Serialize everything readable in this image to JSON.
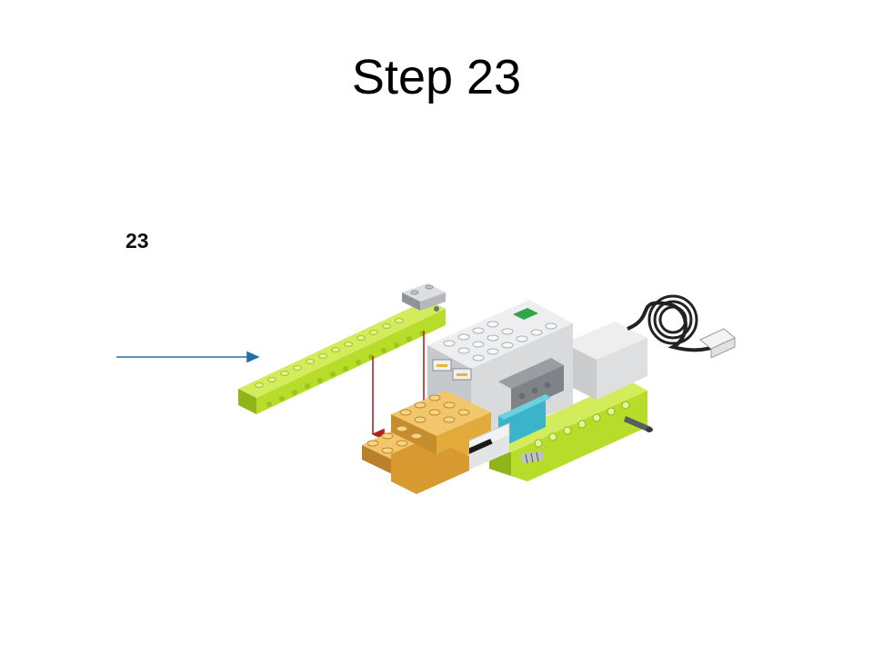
{
  "slide": {
    "title": "Step 23"
  },
  "instruction": {
    "step_number": "23",
    "colors": {
      "lime": "#b7dc2a",
      "lime_dark": "#8fb51a",
      "tan": "#e2a93b",
      "tan_dark": "#b9812a",
      "light_gray": "#d8dadc",
      "mid_gray": "#a9acb0",
      "teal": "#3bb3c9",
      "arrow_blue": "#1f6fa8",
      "arrow_red": "#b0241c",
      "cable": "#222222"
    }
  }
}
